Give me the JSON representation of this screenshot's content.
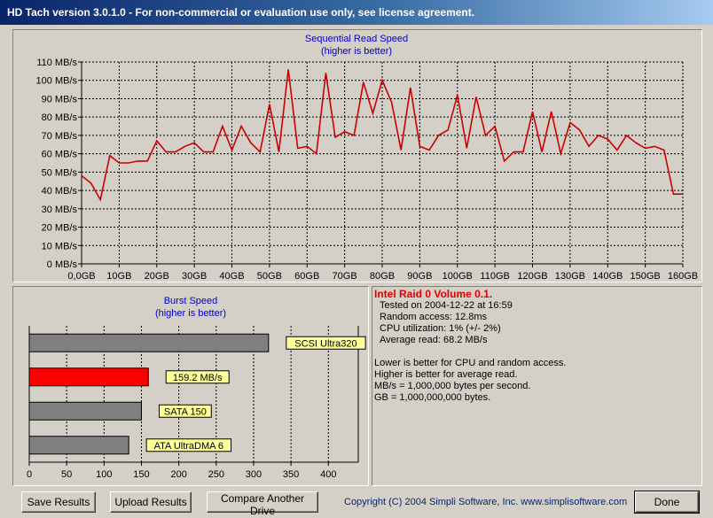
{
  "window": {
    "title": "HD Tach version 3.0.1.0  - For non-commercial or evaluation use only, see license agreement."
  },
  "read_chart": {
    "title": "Sequential Read Speed",
    "subtitle": "(higher is better)",
    "y_ticks": [
      "0 MB/s",
      "10 MB/s",
      "20 MB/s",
      "30 MB/s",
      "40 MB/s",
      "50 MB/s",
      "60 MB/s",
      "70 MB/s",
      "80 MB/s",
      "90 MB/s",
      "100 MB/s",
      "110 MB/s"
    ],
    "x_ticks": [
      "0,0GB",
      "10GB",
      "20GB",
      "30GB",
      "40GB",
      "50GB",
      "60GB",
      "70GB",
      "80GB",
      "90GB",
      "100GB",
      "110GB",
      "120GB",
      "130GB",
      "140GB",
      "150GB",
      "160GB"
    ],
    "line_color": "#cc0000"
  },
  "burst_chart": {
    "title": "Burst Speed",
    "subtitle": "(higher is better)",
    "x_ticks": [
      "0",
      "50",
      "100",
      "150",
      "200",
      "250",
      "300",
      "350",
      "400"
    ],
    "bars": [
      {
        "label": "SCSI Ultra320",
        "color": "#808080"
      },
      {
        "label": "159.2 MB/s",
        "color": "#ff0000"
      },
      {
        "label": "SATA 150",
        "color": "#808080"
      },
      {
        "label": "ATA UltraDMA 6",
        "color": "#808080"
      }
    ]
  },
  "info": {
    "drive_name": "Intel Raid 0 Volume 0.1.",
    "tested": "Tested on 2004-12-22 at 16:59",
    "random_access": "Random access: 12.8ms",
    "cpu": "CPU utilization: 1% (+/- 2%)",
    "average_read": "Average read: 68.2 MB/s",
    "note1": "Lower is better for CPU and random access.",
    "note2": "Higher is better for average read.",
    "note3": "MB/s = 1,000,000 bytes per second.",
    "note4": "GB = 1,000,000,000 bytes."
  },
  "buttons": {
    "save": "Save Results",
    "upload": "Upload Results",
    "compare": "Compare Another Drive",
    "done": "Done"
  },
  "copyright": "Copyright (C) 2004 Simpli Software, Inc. www.simplisoftware.com",
  "chart_data": [
    {
      "type": "line",
      "title": "Sequential Read Speed",
      "subtitle": "(higher is better)",
      "xlabel": "",
      "ylabel": "",
      "xlim": [
        0,
        160
      ],
      "ylim": [
        0,
        110
      ],
      "grid": true,
      "series": [
        {
          "x": [
            0,
            2.5,
            5,
            7.5,
            10,
            12.5,
            15,
            17.5,
            20,
            22.5,
            25,
            27.5,
            30,
            32.5,
            35,
            37.5,
            40,
            42.5,
            45,
            47.5,
            50,
            52.5,
            55,
            57.5,
            60,
            62.5,
            65,
            67.5,
            70,
            72.5,
            75,
            77.5,
            80,
            82.5,
            85,
            87.5,
            90,
            92.5,
            95,
            97.5,
            100,
            102.5,
            105,
            107.5,
            110,
            112.5,
            115,
            117.5,
            120,
            122.5,
            125,
            127.5,
            130,
            132.5,
            135,
            137.5,
            140,
            142.5,
            145,
            147.5,
            150,
            152.5,
            155,
            157.5,
            160
          ],
          "values": [
            48,
            44,
            35,
            59,
            55,
            55,
            56,
            56,
            67,
            61,
            61,
            64,
            66,
            61,
            61,
            75,
            62,
            75,
            66,
            61,
            87,
            61,
            106,
            63,
            64,
            60,
            104,
            69,
            72,
            70,
            99,
            82,
            100,
            88,
            62,
            96,
            64,
            62,
            70,
            73,
            92,
            63,
            91,
            70,
            75,
            56,
            61,
            61,
            83,
            61,
            83,
            60,
            77,
            73,
            64,
            70,
            68,
            62,
            70,
            66,
            63,
            64,
            62,
            38,
            38
          ]
        }
      ]
    },
    {
      "type": "bar",
      "orientation": "horizontal",
      "title": "Burst Speed",
      "subtitle": "(higher is better)",
      "categories": [
        "SCSI Ultra320",
        "159.2 MB/s",
        "SATA 150",
        "ATA UltraDMA 6"
      ],
      "values": [
        320,
        159.2,
        150,
        133
      ],
      "xlim": [
        0,
        440
      ],
      "grid": true
    }
  ]
}
